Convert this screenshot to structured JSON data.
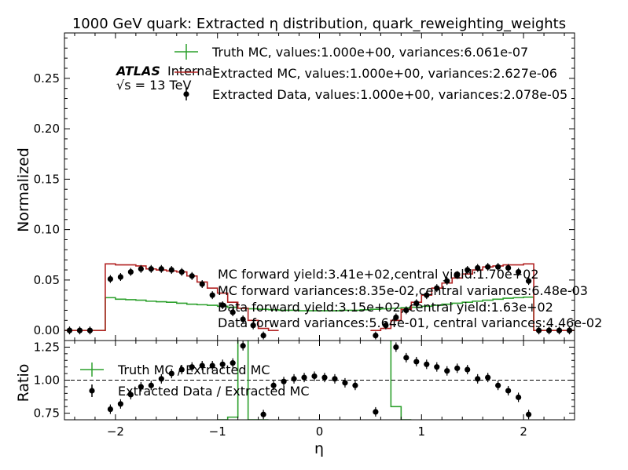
{
  "chart_data": [
    {
      "type": "line",
      "title": "1000 GeV quark: Extracted η distribution, quark_reweighting_weights",
      "xlabel": "",
      "ylabel": "Normalized",
      "xlim": [
        -2.5,
        2.5
      ],
      "ylim": [
        -0.01,
        0.295
      ],
      "yticks": [
        "0.00",
        "0.05",
        "0.10",
        "0.15",
        "0.20",
        "0.25"
      ],
      "grid": false,
      "legend_position": "top-right",
      "atlas_label": "ATLAS",
      "atlas_sublabel": "Internal",
      "energy_label": "√s = 13 TeV",
      "series": [
        {
          "name": "Truth MC, values:1.000e+00, variances:6.061e-07",
          "style": "step",
          "color": "#2ca02c",
          "x": [
            -2.5,
            -2.4,
            -2.3,
            -2.2,
            -2.1,
            -2.0,
            -1.9,
            -1.8,
            -1.7,
            -1.6,
            -1.5,
            -1.4,
            -1.3,
            -1.2,
            -1.1,
            -1.0,
            -0.9,
            -0.8,
            -0.7,
            -0.6,
            -0.5,
            -0.4,
            -0.3,
            -0.2,
            -0.1,
            0.0,
            0.1,
            0.2,
            0.3,
            0.4,
            0.5,
            0.6,
            0.7,
            0.8,
            0.9,
            1.0,
            1.1,
            1.2,
            1.3,
            1.4,
            1.5,
            1.6,
            1.7,
            1.8,
            1.9,
            2.0,
            2.1,
            2.2,
            2.3,
            2.4
          ],
          "values": [
            0,
            0,
            0,
            0,
            0.0325,
            0.031,
            0.0305,
            0.03,
            0.029,
            0.0285,
            0.028,
            0.027,
            0.026,
            0.0255,
            0.025,
            0.024,
            0.023,
            0.022,
            0.0215,
            0.021,
            0.0205,
            0.02,
            0.02,
            0.0195,
            0.0195,
            0.0195,
            0.0195,
            0.02,
            0.02,
            0.0205,
            0.021,
            0.0215,
            0.022,
            0.0225,
            0.023,
            0.024,
            0.025,
            0.026,
            0.027,
            0.028,
            0.029,
            0.03,
            0.031,
            0.032,
            0.0325,
            0.033,
            0,
            0,
            0,
            0
          ]
        },
        {
          "name": "Extracted MC, values:1.000e+00, variances:2.627e-06",
          "style": "step",
          "color": "#b22222",
          "x": [
            -2.5,
            -2.4,
            -2.3,
            -2.2,
            -2.1,
            -2.0,
            -1.9,
            -1.8,
            -1.7,
            -1.6,
            -1.5,
            -1.4,
            -1.3,
            -1.2,
            -1.1,
            -1.0,
            -0.9,
            -0.8,
            -0.7,
            -0.6,
            -0.5,
            0.5,
            0.6,
            0.7,
            0.8,
            0.9,
            1.0,
            1.1,
            1.2,
            1.3,
            1.4,
            1.5,
            1.6,
            1.7,
            1.8,
            1.9,
            2.0,
            2.1,
            2.2,
            2.3,
            2.4
          ],
          "values": [
            0,
            0,
            0,
            0,
            0.066,
            0.065,
            0.065,
            0.064,
            0.061,
            0.06,
            0.059,
            0.058,
            0.054,
            0.048,
            0.042,
            0.037,
            0.028,
            0.022,
            0.01,
            0.002,
            0,
            0,
            0.002,
            0.01,
            0.021,
            0.028,
            0.035,
            0.042,
            0.047,
            0.052,
            0.056,
            0.06,
            0.063,
            0.064,
            0.065,
            0.065,
            0.066,
            0,
            0,
            0,
            0
          ]
        },
        {
          "name": "Extracted Data, values:1.000e+00, variances:2.078e-05",
          "style": "points",
          "color": "#000000",
          "x": [
            -2.45,
            -2.35,
            -2.25,
            -2.05,
            -1.95,
            -1.85,
            -1.75,
            -1.65,
            -1.55,
            -1.45,
            -1.35,
            -1.25,
            -1.15,
            -1.05,
            -0.95,
            -0.85,
            -0.75,
            -0.65,
            -0.55,
            0.55,
            0.65,
            0.75,
            0.85,
            0.95,
            1.05,
            1.15,
            1.25,
            1.35,
            1.45,
            1.55,
            1.65,
            1.75,
            1.85,
            1.95,
            2.05,
            2.15,
            2.25,
            2.35,
            2.45
          ],
          "values": [
            0,
            0,
            0,
            0.051,
            0.053,
            0.058,
            0.061,
            0.061,
            0.061,
            0.06,
            0.058,
            0.054,
            0.046,
            0.035,
            0.025,
            0.018,
            0.011,
            0.005,
            -0.005,
            -0.005,
            0.005,
            0.013,
            0.02,
            0.027,
            0.035,
            0.042,
            0.049,
            0.055,
            0.06,
            0.062,
            0.063,
            0.063,
            0.062,
            0.058,
            0.049,
            0,
            0,
            0,
            0
          ]
        }
      ],
      "annotations": [
        "MC forward yield:3.41e+02,central yield:1.70e+02",
        "MC forward variances:8.35e-02,central variances:6.48e-03",
        "Data forward yield:3.15e+02, central yield:1.63e+02",
        "Data forward variances:5.64e-01, central variances:4.46e-02"
      ]
    },
    {
      "type": "line",
      "title": "",
      "xlabel": "η",
      "ylabel": "Ratio",
      "xlim": [
        -2.5,
        2.5
      ],
      "ylim": [
        0.7,
        1.3
      ],
      "xticks": [
        "−2",
        "−1",
        "0",
        "1",
        "2"
      ],
      "yticks": [
        "0.75",
        "1.00",
        "1.25"
      ],
      "reference_line": 1.0,
      "legend_position": "upper-left",
      "series": [
        {
          "name": "Truth MC / Extracted MC",
          "style": "step",
          "color": "#2ca02c",
          "x": [
            -1.0,
            -0.9,
            -0.8,
            -0.7,
            -0.6,
            0.6,
            0.7,
            0.8
          ],
          "values": [
            0.7,
            0.72,
            1.4,
            0.7,
            0.7,
            1.4,
            0.8,
            0.7
          ]
        },
        {
          "name": "Extracted Data / Extracted MC",
          "style": "points",
          "color": "#000000",
          "x": [
            -2.05,
            -1.95,
            -1.85,
            -1.75,
            -1.65,
            -1.55,
            -1.45,
            -1.35,
            -1.25,
            -1.15,
            -1.05,
            -0.95,
            -0.85,
            -0.75,
            -0.55,
            -0.45,
            -0.35,
            -0.25,
            -0.15,
            -0.05,
            0.05,
            0.15,
            0.25,
            0.35,
            0.55,
            0.75,
            0.85,
            0.95,
            1.05,
            1.15,
            1.25,
            1.35,
            1.45,
            1.55,
            1.65,
            1.75,
            1.85,
            1.95,
            2.05
          ],
          "values": [
            0.78,
            0.82,
            0.89,
            0.95,
            0.96,
            1.01,
            1.05,
            1.08,
            1.1,
            1.11,
            1.11,
            1.12,
            1.13,
            1.26,
            0.74,
            0.96,
            0.99,
            1.01,
            1.02,
            1.03,
            1.02,
            1.01,
            0.98,
            0.96,
            0.76,
            1.25,
            1.17,
            1.14,
            1.12,
            1.1,
            1.07,
            1.09,
            1.08,
            1.01,
            1.02,
            0.96,
            0.92,
            0.87,
            0.74
          ]
        }
      ]
    }
  ]
}
